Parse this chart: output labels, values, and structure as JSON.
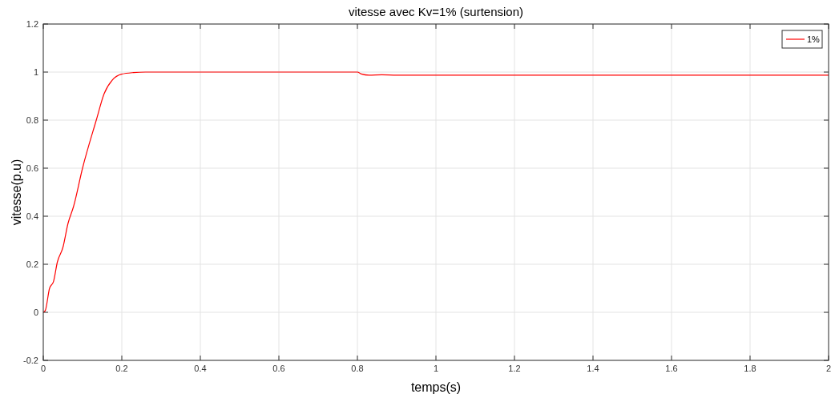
{
  "chart_data": {
    "type": "line",
    "title": "vitesse avec Kv=1% (surtension)",
    "xlabel": "temps(s)",
    "ylabel": "vitesse(p.u)",
    "xlim": [
      0,
      2
    ],
    "ylim": [
      -0.2,
      1.2
    ],
    "xticks": [
      0,
      0.2,
      0.4,
      0.6,
      0.8,
      1,
      1.2,
      1.4,
      1.6,
      1.8,
      2
    ],
    "yticks": [
      -0.2,
      0,
      0.2,
      0.4,
      0.6,
      0.8,
      1,
      1.2
    ],
    "grid": true,
    "legend": "top right",
    "series": [
      {
        "name": "1%",
        "color": "#ff0000",
        "x": [
          0,
          0.005,
          0.016,
          0.026,
          0.036,
          0.05,
          0.063,
          0.077,
          0.1,
          0.135,
          0.155,
          0.176,
          0.199,
          0.23,
          0.26,
          0.5,
          0.8,
          0.81,
          0.83,
          0.862,
          0.9,
          1.2,
          1.6,
          2
        ],
        "values": [
          0,
          0.007,
          0.1,
          0.128,
          0.21,
          0.27,
          0.37,
          0.44,
          0.6,
          0.8,
          0.91,
          0.967,
          0.991,
          0.998,
          1,
          1,
          1,
          0.992,
          0.987,
          0.989,
          0.987,
          0.987,
          0.987,
          0.987
        ]
      }
    ]
  }
}
